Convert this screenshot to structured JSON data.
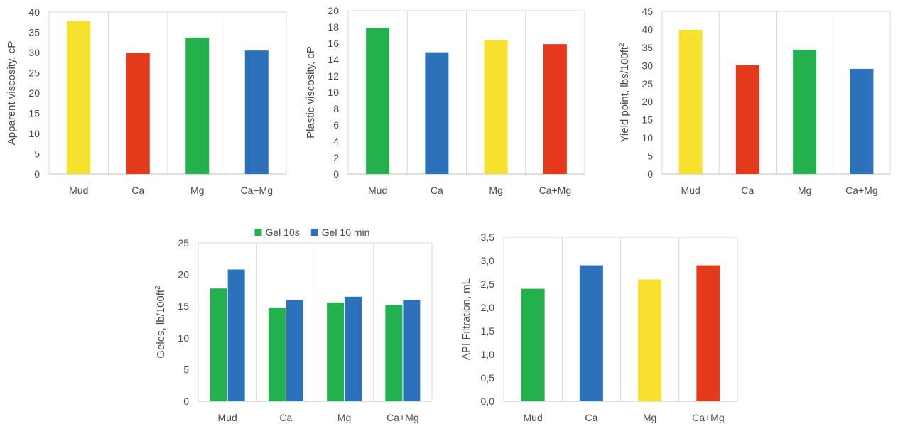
{
  "colors": {
    "yellow": "#F7E02E",
    "red": "#E4391B",
    "green": "#22B14C",
    "blue": "#2B72BA"
  },
  "chart_data": [
    {
      "type": "bar",
      "categories": [
        "Mud",
        "Ca",
        "Mg",
        "Ca+Mg"
      ],
      "values": [
        37.8,
        29.9,
        33.7,
        30.5
      ],
      "bar_colors": [
        "#F7E02E",
        "#E4391B",
        "#22B14C",
        "#2B72BA"
      ],
      "ylabel": "Apparent viscosity, cP",
      "ylim": [
        0,
        40
      ],
      "yticks": [
        "0",
        "5",
        "10",
        "15",
        "20",
        "25",
        "30",
        "35",
        "40"
      ],
      "grid": "vertical"
    },
    {
      "type": "bar",
      "categories": [
        "Mud",
        "Ca",
        "Mg",
        "Ca+Mg"
      ],
      "values": [
        17.9,
        14.9,
        16.4,
        15.9
      ],
      "bar_colors": [
        "#22B14C",
        "#2B72BA",
        "#F7E02E",
        "#E4391B"
      ],
      "ylabel": "Plastic viscosity, cP",
      "ylim": [
        0,
        20
      ],
      "yticks": [
        "0",
        "2",
        "4",
        "6",
        "8",
        "10",
        "12",
        "14",
        "16",
        "18",
        "20"
      ],
      "grid": "vertical"
    },
    {
      "type": "bar",
      "categories": [
        "Mud",
        "Ca",
        "Mg",
        "Ca+Mg"
      ],
      "values": [
        39.9,
        30.1,
        34.4,
        29.1
      ],
      "bar_colors": [
        "#F7E02E",
        "#E4391B",
        "#22B14C",
        "#2B72BA"
      ],
      "ylabel": "Yield point, lbs/100ft",
      "ylabel_sup": "2",
      "ylim": [
        0,
        45
      ],
      "yticks": [
        "0",
        "5",
        "10",
        "15",
        "20",
        "25",
        "30",
        "35",
        "40",
        "45"
      ],
      "grid": "vertical"
    },
    {
      "type": "bar",
      "categories": [
        "Mud",
        "Ca",
        "Mg",
        "Ca+Mg"
      ],
      "series": [
        {
          "name": "Gel 10s",
          "color": "#22B14C",
          "values": [
            17.8,
            14.8,
            15.6,
            15.2
          ]
        },
        {
          "name": "Gel 10 min",
          "color": "#2B72BA",
          "values": [
            20.8,
            16.0,
            16.5,
            16.0
          ]
        }
      ],
      "ylabel": "Geles, lb/100ft",
      "ylabel_sup": "2",
      "ylim": [
        0,
        25
      ],
      "yticks": [
        "0",
        "5",
        "10",
        "15",
        "20",
        "25"
      ],
      "legend": "top",
      "grid": "vertical"
    },
    {
      "type": "bar",
      "categories": [
        "Mud",
        "Ca",
        "Mg",
        "Ca+Mg"
      ],
      "values": [
        2.4,
        2.9,
        2.6,
        2.9
      ],
      "bar_colors": [
        "#22B14C",
        "#2B72BA",
        "#F7E02E",
        "#E4391B"
      ],
      "ylabel": "API Filtration, mL",
      "ylim": [
        0,
        3.5
      ],
      "yticks": [
        "0,0",
        "0,5",
        "1,0",
        "1,5",
        "2,0",
        "2,5",
        "3,0",
        "3,5"
      ],
      "grid": "vertical"
    }
  ]
}
